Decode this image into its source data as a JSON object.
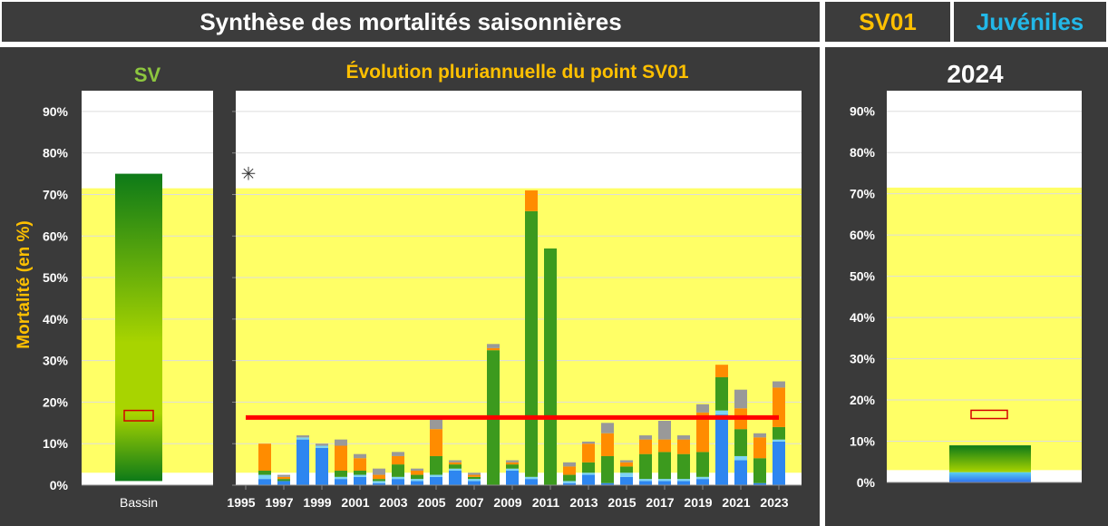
{
  "header": {
    "title": "Synthèse des mortalités saisonnières",
    "station": "SV01",
    "category": "Juvéniles",
    "colors": {
      "bg": "#3c3c3c",
      "title": "#ffffff",
      "station": "#ffc000",
      "category": "#22b8e8"
    }
  },
  "chart_data": [
    {
      "type": "bar",
      "title": "SV",
      "ylabel": "Mortalité (en %)",
      "ylim": [
        0,
        95
      ],
      "yticks": [
        "0%",
        "10%",
        "20%",
        "30%",
        "40%",
        "50%",
        "60%",
        "70%",
        "80%",
        "90%"
      ],
      "categories": [
        "Bassin"
      ],
      "range": {
        "min": 1,
        "max": 75
      },
      "median_box": {
        "low": 15.5,
        "high": 18
      },
      "band": {
        "low": 3,
        "high": 71.5,
        "color": "#ffff66"
      },
      "colors": {
        "title": "#8dc63f",
        "ylabel": "#ffc000",
        "bar_top": "#0d7a18",
        "bar_mid": "#a8d400",
        "box": "#d40000"
      }
    },
    {
      "type": "bar",
      "stacked": true,
      "title": "Évolution pluriannuelle du point SV01",
      "x": [
        1995,
        1996,
        1997,
        1998,
        1999,
        2000,
        2001,
        2002,
        2003,
        2004,
        2005,
        2006,
        2007,
        2008,
        2009,
        2010,
        2011,
        2012,
        2013,
        2014,
        2015,
        2016,
        2017,
        2018,
        2019,
        2020,
        2021,
        2022,
        2023
      ],
      "xtick_labels": [
        "1995",
        "1997",
        "1999",
        "2001",
        "2003",
        "2005",
        "2007",
        "2009",
        "2011",
        "2013",
        "2015",
        "2017",
        "2019",
        "2021",
        "2023"
      ],
      "ylim": [
        0,
        95
      ],
      "band": {
        "low": 3,
        "high": 71.5,
        "color": "#ffff66"
      },
      "reference_line": {
        "value": 16.3,
        "color": "#ff0000"
      },
      "star_marker": {
        "x": 1995,
        "y": 75,
        "symbol": "✳"
      },
      "series": [
        {
          "color": "#2e86f0",
          "values": [
            0,
            1.5,
            1,
            11,
            9,
            1.5,
            2,
            0.5,
            1.5,
            1,
            2,
            3.5,
            1,
            0,
            3.5,
            1.5,
            0,
            0.5,
            2.5,
            0.5,
            2,
            1,
            1,
            1,
            1.5,
            17,
            6,
            0.5,
            10.5
          ]
        },
        {
          "color": "#7dd3f5",
          "values": [
            0,
            1,
            0,
            0.5,
            0.5,
            0.5,
            0.5,
            0.5,
            0.5,
            0.5,
            0.5,
            0.5,
            0.5,
            0,
            0.5,
            0.5,
            0,
            0.5,
            0.5,
            0,
            1,
            0.5,
            0.5,
            0.5,
            0.5,
            1,
            1,
            0,
            0.5
          ]
        },
        {
          "color": "#3c9a1e",
          "values": [
            0,
            1,
            0.5,
            0,
            0,
            1.5,
            1,
            0.5,
            3,
            1,
            4.5,
            1,
            0.5,
            32.5,
            1,
            64,
            57,
            1.5,
            2.5,
            6.5,
            1.5,
            6,
            6.5,
            6,
            6,
            8,
            6.5,
            6,
            3
          ]
        },
        {
          "color": "#ff8c00",
          "values": [
            0,
            6.5,
            0.5,
            0,
            0,
            6,
            3,
            1,
            2,
            1,
            6.5,
            0.5,
            0.5,
            0.5,
            0.5,
            5,
            0,
            2,
            4.5,
            5.5,
            1,
            3.5,
            3,
            3.5,
            9.5,
            3,
            5,
            5,
            9.5
          ]
        },
        {
          "color": "#999999",
          "values": [
            0,
            0,
            0.5,
            0.5,
            0.5,
            1.5,
            1,
            1.5,
            1,
            0.5,
            2.5,
            0.5,
            0.5,
            1,
            0.5,
            0,
            0,
            1,
            0.5,
            2.5,
            0.5,
            1,
            4.5,
            1,
            2,
            0,
            4.5,
            1,
            1.5
          ]
        }
      ],
      "colors": {
        "title": "#ffc000"
      }
    },
    {
      "type": "bar",
      "stacked": true,
      "title": "2024",
      "ylim": [
        0,
        95
      ],
      "yticks": [
        "0%",
        "10%",
        "20%",
        "30%",
        "40%",
        "50%",
        "60%",
        "70%",
        "80%",
        "90%"
      ],
      "band": {
        "low": 3,
        "high": 71.5,
        "color": "#ffff66"
      },
      "series": [
        {
          "color": "#2e86f0",
          "values": [
            2.5
          ]
        },
        {
          "color": "#3c9a1e",
          "values": [
            6.5
          ]
        }
      ],
      "median_box": {
        "low": 15.5,
        "high": 17.5
      },
      "colors": {
        "title": "#ffffff",
        "box": "#d40000"
      }
    }
  ]
}
